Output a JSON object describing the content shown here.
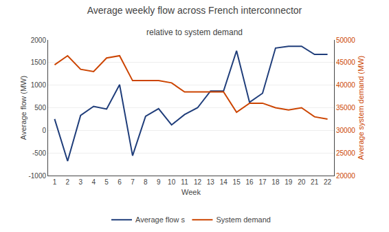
{
  "chart_data": {
    "type": "line",
    "title": "Average weekly flow across French interconnector",
    "subtitle": "relative to system demand",
    "xlabel": "Week",
    "ylabel": "Average flow (MW)",
    "y2label": "Average system demand (MW)",
    "x": [
      1,
      2,
      3,
      4,
      5,
      6,
      7,
      8,
      9,
      10,
      11,
      12,
      13,
      14,
      15,
      16,
      17,
      18,
      19,
      20,
      21,
      22
    ],
    "xlim": [
      0.5,
      22.5
    ],
    "xticks": [
      1,
      2,
      3,
      4,
      5,
      6,
      7,
      8,
      9,
      10,
      11,
      12,
      13,
      14,
      15,
      16,
      17,
      18,
      19,
      20,
      21,
      22
    ],
    "ylim": [
      -1000,
      2000
    ],
    "yticks": [
      -1000,
      -500,
      0,
      500,
      1000,
      1500,
      2000
    ],
    "y2lim": [
      20000,
      50000
    ],
    "y2ticks": [
      20000,
      25000,
      30000,
      35000,
      40000,
      45000,
      50000
    ],
    "grid": true,
    "legend": "bottom",
    "series": [
      {
        "name": "Average flow s",
        "color": "#1f3d7a",
        "values": [
          250,
          -680,
          330,
          530,
          470,
          1010,
          -560,
          310,
          480,
          120,
          350,
          500,
          870,
          870,
          1760,
          620,
          820,
          1820,
          1860,
          1860,
          1680,
          1680
        ]
      },
      {
        "name": "System demand",
        "color": "#cc4400",
        "axis": "y2",
        "values": [
          44500,
          46500,
          43500,
          43000,
          46000,
          46500,
          41000,
          41000,
          41000,
          40500,
          38500,
          38500,
          38500,
          38500,
          34000,
          36000,
          36000,
          35000,
          34500,
          35000,
          33000,
          32500
        ]
      }
    ]
  }
}
